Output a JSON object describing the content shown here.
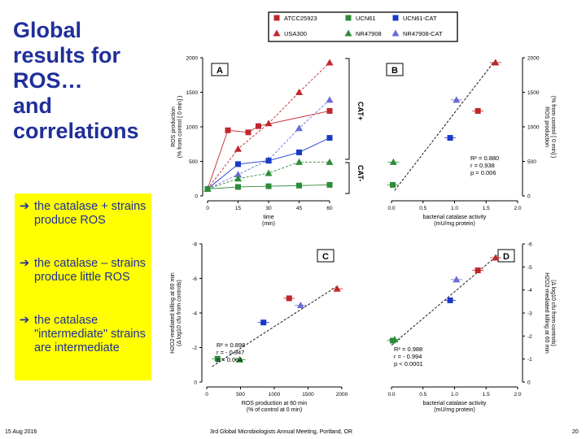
{
  "slide": {
    "title_lines": [
      "Global",
      "results for",
      "ROS…",
      "and",
      "correlations"
    ],
    "bullets": [
      {
        "arrow": "➔",
        "text": "the catalase + strains produce ROS"
      },
      {
        "arrow": "➔",
        "text": "the catalase – strains produce little ROS"
      },
      {
        "arrow": "➔",
        "text": "the catalase \"intermediate\" strains are intermediate"
      }
    ],
    "footer": {
      "date": "15 Aug 2016",
      "conference": "3rd Global Microbiologists Annual Meeting, Portland, OR",
      "page": "20"
    }
  },
  "legend": {
    "items": [
      {
        "label": "ATCC25923",
        "color": "#c0272d",
        "marker": "square"
      },
      {
        "label": "UCN61",
        "color": "#2e8b3a",
        "marker": "square"
      },
      {
        "label": "UCN61-CAT",
        "color": "#1a3ac8",
        "marker": "square"
      },
      {
        "label": "USA300",
        "color": "#c0272d",
        "marker": "triangle"
      },
      {
        "label": "NR47908",
        "color": "#2e8b3a",
        "marker": "triangle"
      },
      {
        "label": "NR47908-CAT",
        "color": "#6b6bd6",
        "marker": "triangle"
      }
    ]
  },
  "annotations": {
    "cat_plus": "CAT+",
    "cat_minus": "CAT-",
    "stats_B": [
      "R² = 0.880",
      "r = 0.938",
      "p = 0.006"
    ],
    "stats_C": [
      "R² = 0.898",
      "r = - 0.947",
      "p = 0.004"
    ],
    "stats_D": [
      "R² = 0.988",
      "r = - 0.994",
      "p < 0.0001"
    ]
  },
  "colors": {
    "title_blue": "#1f2f9a",
    "highlight": "#ffff00",
    "red": "#c0272d",
    "green": "#2e8b3a",
    "blue": "#1a3ac8",
    "lightblue": "#6b6bd6"
  },
  "chart_data": [
    {
      "id": "A",
      "type": "line",
      "xlabel": "time (min)",
      "ylabel": "ROS production (% from control [ 0 min] )",
      "xticks": [
        "0",
        "15",
        "30",
        "45",
        "60"
      ],
      "yticks": [
        "0",
        "500",
        "1000",
        "1500",
        "2000"
      ],
      "xlim": [
        0,
        60
      ],
      "ylim": [
        0,
        2000
      ],
      "series": [
        {
          "name": "USA300",
          "color": "#c0272d",
          "marker": "triangle",
          "x": [
            0,
            15,
            30,
            45,
            60
          ],
          "y": [
            100,
            680,
            1050,
            1500,
            1930
          ]
        },
        {
          "name": "ATCC25923",
          "color": "#c0272d",
          "marker": "square",
          "x": [
            0,
            10,
            20,
            25,
            60
          ],
          "y": [
            100,
            950,
            920,
            1010,
            1230
          ]
        },
        {
          "name": "NR47908-CAT",
          "color": "#6b6bd6",
          "marker": "triangle",
          "x": [
            0,
            15,
            30,
            45,
            60
          ],
          "y": [
            100,
            310,
            520,
            980,
            1390
          ]
        },
        {
          "name": "UCN61-CAT",
          "color": "#1a3ac8",
          "marker": "square",
          "x": [
            0,
            15,
            30,
            45,
            60
          ],
          "y": [
            100,
            460,
            510,
            630,
            840
          ]
        },
        {
          "name": "NR47908",
          "color": "#2e8b3a",
          "marker": "triangle",
          "x": [
            0,
            15,
            30,
            45,
            60
          ],
          "y": [
            100,
            250,
            330,
            490,
            490
          ]
        },
        {
          "name": "UCN61",
          "color": "#2e8b3a",
          "marker": "square",
          "x": [
            0,
            15,
            30,
            45,
            60
          ],
          "y": [
            100,
            130,
            140,
            150,
            160
          ]
        }
      ]
    },
    {
      "id": "B",
      "type": "scatter",
      "xlabel": "bacterial catalase activity (mU/mg protein)",
      "ylabel": "ROS production (% from control [ 0 min] )",
      "xticks": [
        "0.0",
        "0.5",
        "1.0",
        "1.5",
        "2.0"
      ],
      "yticks": [
        "0",
        "500",
        "1000",
        "1500",
        "2000"
      ],
      "xlim": [
        0,
        2
      ],
      "ylim": [
        0,
        2000
      ],
      "points": [
        {
          "x": 0.02,
          "y": 160,
          "color": "#2e8b3a",
          "marker": "square"
        },
        {
          "x": 0.03,
          "y": 490,
          "color": "#2e8b3a",
          "marker": "triangle"
        },
        {
          "x": 0.93,
          "y": 840,
          "color": "#1a3ac8",
          "marker": "square"
        },
        {
          "x": 1.03,
          "y": 1390,
          "color": "#6b6bd6",
          "marker": "triangle"
        },
        {
          "x": 1.37,
          "y": 1230,
          "color": "#c0272d",
          "marker": "square"
        },
        {
          "x": 1.65,
          "y": 1930,
          "color": "#c0272d",
          "marker": "triangle"
        }
      ],
      "fit": {
        "x": [
          0.05,
          1.65
        ],
        "y": [
          80,
          1970
        ]
      }
    },
    {
      "id": "C",
      "type": "scatter",
      "xlabel": "ROS production at 60 min (% of control at 0 min)",
      "ylabel": "H2O2-mediated killing at 60 min (Δ log10 cfu from controls)",
      "xticks": [
        "0",
        "500",
        "1000",
        "1500",
        "2000"
      ],
      "yticks": [
        "0",
        "-2",
        "-4",
        "-6",
        "-8"
      ],
      "xlim": [
        0,
        2000
      ],
      "ylim": [
        -8,
        0
      ],
      "points": [
        {
          "x": 160,
          "y": -1.35,
          "color": "#2e8b3a",
          "marker": "square"
        },
        {
          "x": 490,
          "y": -1.3,
          "color": "#2e8b3a",
          "marker": "triangle"
        },
        {
          "x": 840,
          "y": -3.45,
          "color": "#1a3ac8",
          "marker": "square"
        },
        {
          "x": 1220,
          "y": -4.85,
          "color": "#c0272d",
          "marker": "square"
        },
        {
          "x": 1390,
          "y": -4.45,
          "color": "#6b6bd6",
          "marker": "triangle"
        },
        {
          "x": 1930,
          "y": -5.4,
          "color": "#c0272d",
          "marker": "triangle"
        }
      ],
      "fit": {
        "x": [
          80,
          1950
        ],
        "y": [
          -0.9,
          -5.6
        ]
      }
    },
    {
      "id": "D",
      "type": "scatter",
      "xlabel": "bacterial catalase activity (mU/mg protein)",
      "ylabel": "H2O2-mediated killing at 60 min (Δ log10 cfu from controls)",
      "xticks": [
        "0.0",
        "0.5",
        "1.0",
        "1.5",
        "2.0"
      ],
      "yticks": [
        "0",
        "-1",
        "-2",
        "-3",
        "-4",
        "-5",
        "-6"
      ],
      "xlim": [
        0,
        2
      ],
      "ylim": [
        -6,
        0
      ],
      "points": [
        {
          "x": 0.02,
          "y": -1.8,
          "color": "#2e8b3a",
          "marker": "square"
        },
        {
          "x": 0.05,
          "y": -1.85,
          "color": "#2e8b3a",
          "marker": "triangle"
        },
        {
          "x": 0.93,
          "y": -3.55,
          "color": "#1a3ac8",
          "marker": "square"
        },
        {
          "x": 1.03,
          "y": -4.45,
          "color": "#6b6bd6",
          "marker": "triangle"
        },
        {
          "x": 1.37,
          "y": -4.85,
          "color": "#c0272d",
          "marker": "square"
        },
        {
          "x": 1.65,
          "y": -5.4,
          "color": "#c0272d",
          "marker": "triangle"
        }
      ],
      "fit": {
        "x": [
          0.0,
          1.68
        ],
        "y": [
          -1.6,
          -5.5
        ]
      }
    }
  ]
}
